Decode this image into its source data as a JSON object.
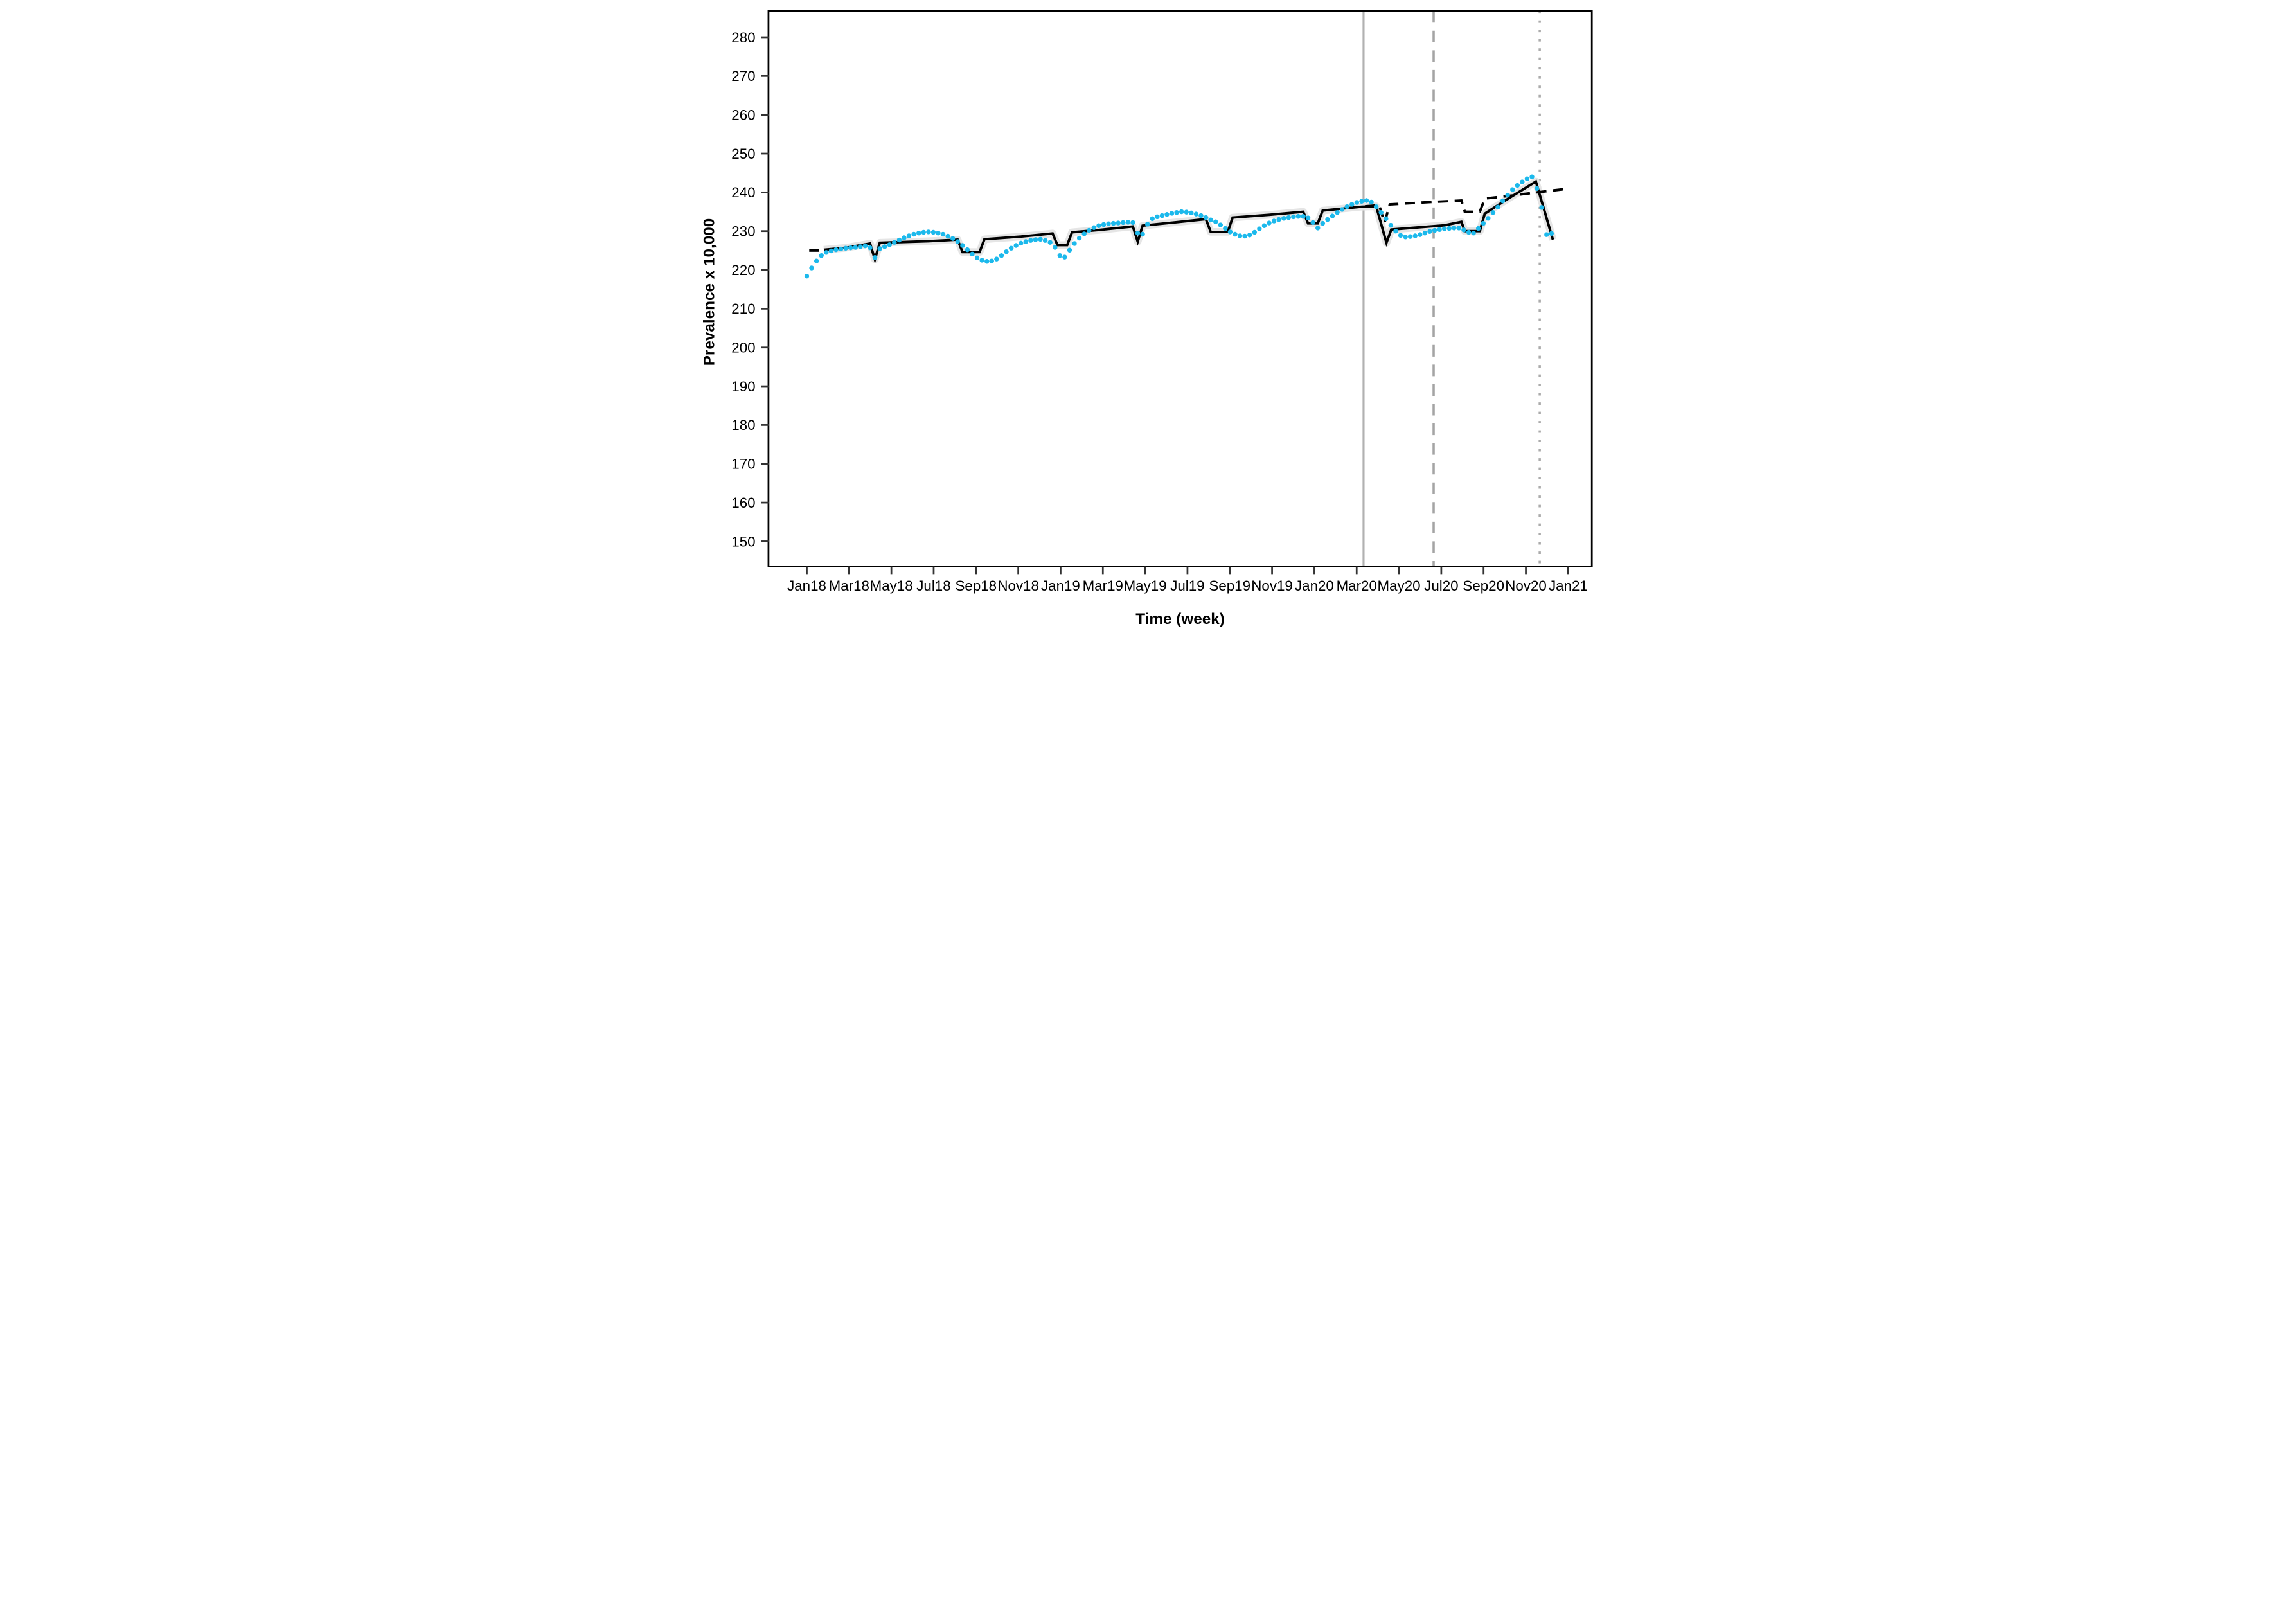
{
  "chart_data": {
    "type": "line",
    "title": "",
    "xlabel": "Time (week)",
    "ylabel": "Prevalence x 10,000",
    "x_tick_labels": [
      "Jan18",
      "Mar18",
      "May18",
      "Jul18",
      "Sep18",
      "Nov18",
      "Jan19",
      "Mar19",
      "May19",
      "Jul19",
      "Sep19",
      "Nov19",
      "Jan20",
      "Mar20",
      "May20",
      "Jul20",
      "Sep20",
      "Nov20",
      "Jan21"
    ],
    "x_tick_month_index": [
      0,
      2,
      4,
      6,
      8,
      10,
      12,
      14,
      16,
      18,
      20,
      22,
      24,
      26,
      28,
      30,
      32,
      34,
      36
    ],
    "y_ticks": [
      150,
      160,
      170,
      180,
      190,
      200,
      210,
      220,
      230,
      240,
      250,
      260,
      270,
      280
    ],
    "ylim": [
      143.5,
      286.8
    ],
    "xlim_weeks": [
      -7.8,
      161.3
    ],
    "grid": "off",
    "legend": "none",
    "series": [
      {
        "name": "observed-weekly-prevalence",
        "kind": "scatter",
        "color": "#1cb9ec",
        "start_week": 0,
        "values": [
          218.4,
          220.5,
          222.3,
          223.7,
          224.5,
          224.9,
          225.2,
          225.4,
          225.6,
          225.7,
          225.8,
          226.0,
          226.2,
          225.7,
          223.2,
          225.5,
          226.0,
          226.5,
          227.1,
          227.7,
          228.3,
          228.8,
          229.2,
          229.5,
          229.7,
          229.8,
          229.7,
          229.5,
          229.2,
          228.7,
          228.1,
          227.3,
          226.3,
          225.2,
          224.1,
          223.1,
          222.5,
          222.2,
          222.3,
          222.8,
          223.7,
          224.7,
          225.6,
          226.3,
          226.9,
          227.3,
          227.6,
          227.8,
          227.9,
          227.6,
          227.1,
          225.8,
          223.7,
          223.3,
          225.1,
          226.8,
          228.2,
          229.3,
          230.2,
          230.9,
          231.4,
          231.7,
          231.9,
          232.0,
          232.1,
          232.2,
          232.3,
          232.2,
          229.5,
          229.2,
          231.8,
          233.2,
          233.7,
          234.0,
          234.3,
          234.6,
          234.8,
          235.0,
          234.9,
          234.7,
          234.4,
          234.0,
          233.5,
          232.9,
          232.4,
          231.6,
          230.7,
          229.8,
          229.2,
          228.8,
          228.7,
          229.0,
          229.7,
          230.6,
          231.4,
          232.1,
          232.6,
          233.0,
          233.3,
          233.5,
          233.7,
          233.8,
          233.8,
          233.4,
          232.2,
          230.8,
          232.0,
          233.0,
          233.9,
          234.8,
          235.6,
          236.3,
          236.9,
          237.4,
          237.7,
          237.9,
          237.5,
          236.3,
          234.8,
          233.2,
          231.5,
          230.0,
          228.9,
          228.5,
          228.6,
          228.8,
          229.1,
          229.5,
          229.9,
          230.2,
          230.4,
          230.6,
          230.7,
          230.8,
          230.8,
          230.3,
          229.7,
          229.5,
          230.7,
          232.0,
          233.3,
          234.8,
          236.2,
          237.8,
          239.3,
          240.7,
          241.8,
          242.7,
          243.5,
          244.0,
          241.0,
          236.1,
          229.1,
          229.4
        ]
      },
      {
        "name": "fitted-model-line",
        "kind": "line",
        "color": "#000000",
        "band_color": "#e4e4e4",
        "vertices": [
          [
            3.5,
            225.2
          ],
          [
            8,
            225.7
          ],
          [
            13,
            226.8
          ],
          [
            14,
            222.7
          ],
          [
            15,
            227.0
          ],
          [
            25,
            227.4
          ],
          [
            31,
            227.8
          ],
          [
            32,
            224.6
          ],
          [
            35.5,
            224.6
          ],
          [
            36.5,
            227.9
          ],
          [
            44,
            228.6
          ],
          [
            50.5,
            229.4
          ],
          [
            51.5,
            226.4
          ],
          [
            53.5,
            226.4
          ],
          [
            54.5,
            229.7
          ],
          [
            60,
            230.3
          ],
          [
            67,
            231.2
          ],
          [
            68,
            227.3
          ],
          [
            69,
            231.4
          ],
          [
            76,
            232.3
          ],
          [
            82,
            233.1
          ],
          [
            83,
            229.8
          ],
          [
            86.5,
            229.8
          ],
          [
            87.5,
            233.5
          ],
          [
            95,
            234.2
          ],
          [
            102,
            235.0
          ],
          [
            103,
            232.0
          ],
          [
            105,
            232.0
          ],
          [
            106,
            235.3
          ],
          [
            110,
            235.8
          ],
          [
            114,
            236.3
          ],
          [
            117,
            236.4
          ],
          [
            119.1,
            227.0
          ],
          [
            120.1,
            230.4
          ],
          [
            126,
            231.0
          ],
          [
            131,
            231.5
          ],
          [
            134.5,
            232.4
          ],
          [
            135.2,
            230.0
          ],
          [
            138.3,
            230.0
          ],
          [
            139.3,
            234.5
          ],
          [
            144,
            238.3
          ],
          [
            149.8,
            242.8
          ],
          [
            153.3,
            227.8
          ]
        ]
      },
      {
        "name": "counterfactual-dashed-line",
        "kind": "dashed-line",
        "color": "#000000",
        "stub_vertices": [
          [
            0.5,
            225.0
          ],
          [
            2.5,
            225.0
          ]
        ],
        "vertices": [
          [
            114.7,
            236.4
          ],
          [
            117.6,
            236.7
          ],
          [
            118.7,
            232.2
          ],
          [
            119.8,
            236.9
          ],
          [
            128,
            237.5
          ],
          [
            134.5,
            237.9
          ],
          [
            135.2,
            235.0
          ],
          [
            138.3,
            235.0
          ],
          [
            139.3,
            238.4
          ],
          [
            145,
            239.2
          ],
          [
            150.6,
            240.1
          ],
          [
            156.1,
            240.9
          ]
        ]
      }
    ],
    "reference_lines": [
      {
        "name": "vline-solid",
        "week": 114.4,
        "style": "solid",
        "color": "#b1b1b1"
      },
      {
        "name": "vline-dashed",
        "week": 128.8,
        "style": "dashed",
        "color": "#a4a4a4"
      },
      {
        "name": "vline-dotted",
        "week": 150.6,
        "style": "dotted",
        "color": "#ababab"
      }
    ]
  }
}
